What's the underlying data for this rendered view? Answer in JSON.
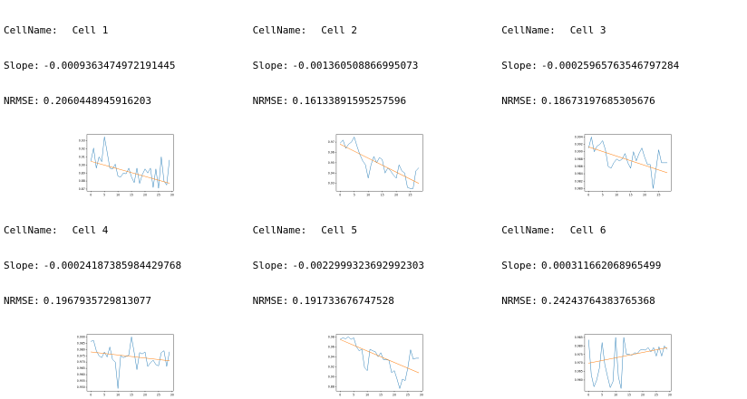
{
  "colors": {
    "line": "#1f77b4",
    "trend": "#ff7f0e",
    "axis": "#000000"
  },
  "panels": [
    {
      "cellname_label": "CellName:",
      "cell_name": "Cell 1",
      "slope_label": "Slope:",
      "slope": "-0.0009363474972191445",
      "nrmse_label": "NRMSE:",
      "nrmse": "0.2060448945916203"
    },
    {
      "cellname_label": "CellName:",
      "cell_name": "Cell 2",
      "slope_label": "Slope:",
      "slope": "-0.001360508866995073",
      "nrmse_label": "NRMSE:",
      "nrmse": "0.16133891595257596"
    },
    {
      "cellname_label": "CellName:",
      "cell_name": "Cell 3",
      "slope_label": "Slope:",
      "slope": "-0.00025965763546797284",
      "nrmse_label": "NRMSE:",
      "nrmse": "0.18673197685305676"
    },
    {
      "cellname_label": "CellName:",
      "cell_name": "Cell 4",
      "slope_label": "Slope:",
      "slope": "-0.00024187385984429768",
      "nrmse_label": "NRMSE:",
      "nrmse": "0.1967935729813077"
    },
    {
      "cellname_label": "CellName:",
      "cell_name": "Cell 5",
      "slope_label": "Slope:",
      "slope": "-0.0022999323692992303",
      "nrmse_label": "NRMSE:",
      "nrmse": "0.191733676747528"
    },
    {
      "cellname_label": "CellName:",
      "cell_name": "Cell 6",
      "slope_label": "Slope:",
      "slope": "0.000311662068965499",
      "nrmse_label": "NRMSE:",
      "nrmse": "0.24243764383765368"
    }
  ],
  "chart_data": [
    {
      "type": "line",
      "title": "Cell 1",
      "xlabel": "",
      "ylabel": "",
      "grid": false,
      "legend": "none",
      "xlim": [
        -1.45,
        30.45
      ],
      "ylim": [
        0.8675,
        0.938
      ],
      "xticks": [
        0,
        5,
        10,
        15,
        20,
        25,
        30
      ],
      "yticks": [
        0.87,
        0.88,
        0.89,
        0.9,
        0.91,
        0.92,
        0.93
      ],
      "ytick_labels": [
        "0.87",
        "0.88",
        "0.89",
        "0.90",
        "0.91",
        "0.92",
        "0.93"
      ],
      "series": [
        {
          "name": "signal",
          "y": [
            0.905,
            0.921,
            0.896,
            0.91,
            0.904,
            0.935,
            0.916,
            0.896,
            0.895,
            0.901,
            0.886,
            0.885,
            0.89,
            0.889,
            0.896,
            0.885,
            0.878,
            0.896,
            0.877,
            0.888,
            0.895,
            0.89,
            0.896,
            0.872,
            0.895,
            0.871,
            0.91,
            0.88,
            0.875,
            0.906
          ]
        },
        {
          "name": "trend",
          "x": [
            0,
            29
          ],
          "y": [
            0.9045,
            0.8773
          ]
        }
      ]
    },
    {
      "type": "line",
      "title": "Cell 2",
      "xlabel": "",
      "ylabel": "",
      "grid": false,
      "legend": "none",
      "xlim": [
        -1.4,
        29.4
      ],
      "ylim": [
        0.9225,
        0.9775
      ],
      "xticks": [
        0,
        5,
        10,
        15,
        20,
        25
      ],
      "yticks": [
        0.93,
        0.94,
        0.95,
        0.96,
        0.97
      ],
      "ytick_labels": [
        "0.93",
        "0.94",
        "0.95",
        "0.96",
        "0.97"
      ],
      "series": [
        {
          "name": "signal",
          "y": [
            0.969,
            0.972,
            0.964,
            0.968,
            0.97,
            0.975,
            0.966,
            0.958,
            0.952,
            0.948,
            0.935,
            0.948,
            0.956,
            0.95,
            0.955,
            0.953,
            0.94,
            0.945,
            0.942,
            0.938,
            0.935,
            0.948,
            0.942,
            0.94,
            0.926,
            0.925,
            0.925,
            0.942,
            0.945
          ]
        },
        {
          "name": "trend",
          "x": [
            0,
            28
          ],
          "y": [
            0.968,
            0.93
          ]
        }
      ]
    },
    {
      "type": "line",
      "title": "Cell 3",
      "xlabel": "",
      "ylabel": "",
      "grid": false,
      "legend": "none",
      "xlim": [
        -1.4,
        29.4
      ],
      "ylim": [
        0.9793,
        0.9947
      ],
      "xticks": [
        0,
        5,
        10,
        15,
        20,
        25
      ],
      "yticks": [
        0.98,
        0.982,
        0.984,
        0.986,
        0.988,
        0.99,
        0.992,
        0.994
      ],
      "ytick_labels": [
        "0.980",
        "0.982",
        "0.984",
        "0.986",
        "0.988",
        "0.990",
        "0.992",
        "0.994"
      ],
      "series": [
        {
          "name": "signal",
          "y": [
            0.991,
            0.994,
            0.99,
            0.9915,
            0.992,
            0.993,
            0.9905,
            0.986,
            0.9855,
            0.987,
            0.988,
            0.9875,
            0.988,
            0.9895,
            0.987,
            0.9855,
            0.99,
            0.9875,
            0.9895,
            0.991,
            0.9885,
            0.9865,
            0.9865,
            0.98,
            0.985,
            0.9905,
            0.987,
            0.987,
            0.987
          ]
        },
        {
          "name": "trend",
          "x": [
            0,
            28
          ],
          "y": [
            0.9913,
            0.9843
          ]
        }
      ]
    },
    {
      "type": "line",
      "title": "Cell 4",
      "xlabel": "",
      "ylabel": "",
      "grid": false,
      "legend": "none",
      "xlim": [
        -1.45,
        30.45
      ],
      "ylim": [
        0.947,
        0.992
      ],
      "xticks": [
        0,
        5,
        10,
        15,
        20,
        25,
        30
      ],
      "yticks": [
        0.95,
        0.955,
        0.96,
        0.965,
        0.97,
        0.975,
        0.98,
        0.985,
        0.99
      ],
      "ytick_labels": [
        "0.950",
        "0.955",
        "0.960",
        "0.965",
        "0.970",
        "0.975",
        "0.980",
        "0.985",
        "0.990"
      ],
      "series": [
        {
          "name": "signal",
          "y": [
            0.9865,
            0.987,
            0.979,
            0.975,
            0.9735,
            0.978,
            0.974,
            0.982,
            0.972,
            0.97,
            0.949,
            0.975,
            0.9735,
            0.9745,
            0.9755,
            0.99,
            0.9775,
            0.964,
            0.9775,
            0.9765,
            0.978,
            0.9665,
            0.9695,
            0.9715,
            0.968,
            0.967,
            0.9775,
            0.979,
            0.9665,
            0.978
          ]
        },
        {
          "name": "trend",
          "x": [
            0,
            29
          ],
          "y": [
            0.978,
            0.971
          ]
        }
      ]
    },
    {
      "type": "line",
      "title": "Cell 5",
      "xlabel": "",
      "ylabel": "",
      "grid": false,
      "legend": "none",
      "xlim": [
        -1.45,
        30.45
      ],
      "ylim": [
        0.871,
        0.985
      ],
      "xticks": [
        0,
        5,
        10,
        15,
        20,
        25,
        30
      ],
      "yticks": [
        0.88,
        0.9,
        0.92,
        0.94,
        0.96,
        0.98
      ],
      "ytick_labels": [
        "0.88",
        "0.90",
        "0.92",
        "0.94",
        "0.96",
        "0.98"
      ],
      "series": [
        {
          "name": "signal",
          "y": [
            0.975,
            0.978,
            0.976,
            0.98,
            0.975,
            0.978,
            0.96,
            0.952,
            0.955,
            0.918,
            0.912,
            0.955,
            0.952,
            0.95,
            0.94,
            0.948,
            0.934,
            0.934,
            0.933,
            0.908,
            0.912,
            0.895,
            0.876,
            0.895,
            0.892,
            0.918,
            0.954,
            0.935,
            0.937,
            0.937
          ]
        },
        {
          "name": "trend",
          "x": [
            0,
            29
          ],
          "y": [
            0.9745,
            0.9078
          ]
        }
      ]
    },
    {
      "type": "line",
      "title": "Cell 6",
      "xlabel": "",
      "ylabel": "",
      "grid": false,
      "legend": "none",
      "xlim": [
        -1.45,
        30.45
      ],
      "ylim": [
        0.9535,
        0.9868
      ],
      "xticks": [
        0,
        5,
        10,
        15,
        20,
        25,
        30
      ],
      "yticks": [
        0.96,
        0.965,
        0.97,
        0.975,
        0.98,
        0.985
      ],
      "ytick_labels": [
        "0.960",
        "0.965",
        "0.970",
        "0.975",
        "0.980",
        "0.985"
      ],
      "series": [
        {
          "name": "signal",
          "y": [
            0.9835,
            0.963,
            0.956,
            0.96,
            0.967,
            0.982,
            0.969,
            0.962,
            0.9555,
            0.959,
            0.985,
            0.962,
            0.955,
            0.985,
            0.975,
            0.975,
            0.9745,
            0.976,
            0.9755,
            0.9775,
            0.978,
            0.9775,
            0.979,
            0.9765,
            0.979,
            0.974,
            0.9795,
            0.974,
            0.98,
            0.978
          ]
        },
        {
          "name": "trend",
          "x": [
            0,
            29
          ],
          "y": [
            0.9699,
            0.979
          ]
        }
      ]
    }
  ]
}
